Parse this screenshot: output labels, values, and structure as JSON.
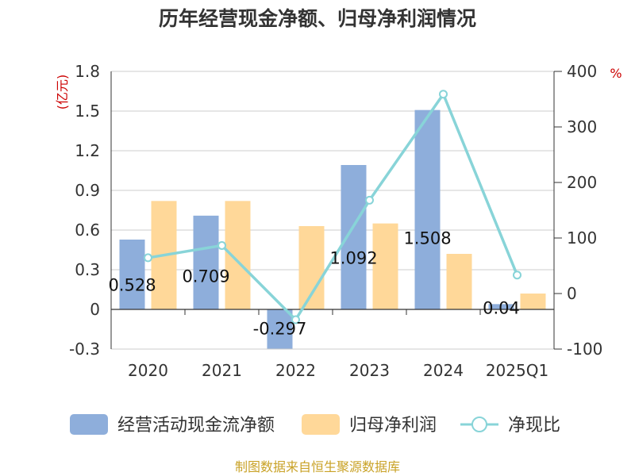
{
  "chart_data": {
    "type": "bar",
    "title": "历年经营现金净额、归母净利润情况",
    "categories": [
      "2020",
      "2021",
      "2022",
      "2023",
      "2024",
      "2025Q1"
    ],
    "series": [
      {
        "name": "经营活动现金流净额",
        "type": "bar",
        "axis": "left",
        "color": "#8eaedb",
        "values": [
          0.528,
          0.709,
          -0.297,
          1.092,
          1.508,
          0.04
        ],
        "labels": [
          "0.528",
          "0.709",
          "-0.297",
          "1.092",
          "1.508",
          "0.04"
        ]
      },
      {
        "name": "归母净利润",
        "type": "bar",
        "axis": "left",
        "color": "#ffd899",
        "values": [
          0.82,
          0.82,
          0.63,
          0.65,
          0.42,
          0.12
        ]
      },
      {
        "name": "净现比",
        "type": "line",
        "axis": "right",
        "color": "#88d4d8",
        "values": [
          64.4,
          86.5,
          -47.1,
          168.0,
          359.0,
          33.3
        ]
      }
    ],
    "y_left": {
      "unit": "(亿元)",
      "ylim": [
        -0.3,
        1.8
      ],
      "ticks": [
        -0.3,
        0,
        0.3,
        0.6,
        0.9,
        1.2,
        1.5,
        1.8
      ],
      "tick_labels": [
        "-0.3",
        "0",
        "0.3",
        "0.6",
        "0.9",
        "1.2",
        "1.5",
        "1.8"
      ]
    },
    "y_right": {
      "unit": "%",
      "ylim": [
        -100,
        400
      ],
      "ticks": [
        -100,
        0,
        100,
        200,
        300,
        400
      ],
      "tick_labels": [
        "-100",
        "0",
        "100",
        "200",
        "300",
        "400"
      ]
    },
    "legend": {
      "position": "bottom"
    },
    "grid": true,
    "source": "制图数据来自恒生聚源数据库"
  }
}
